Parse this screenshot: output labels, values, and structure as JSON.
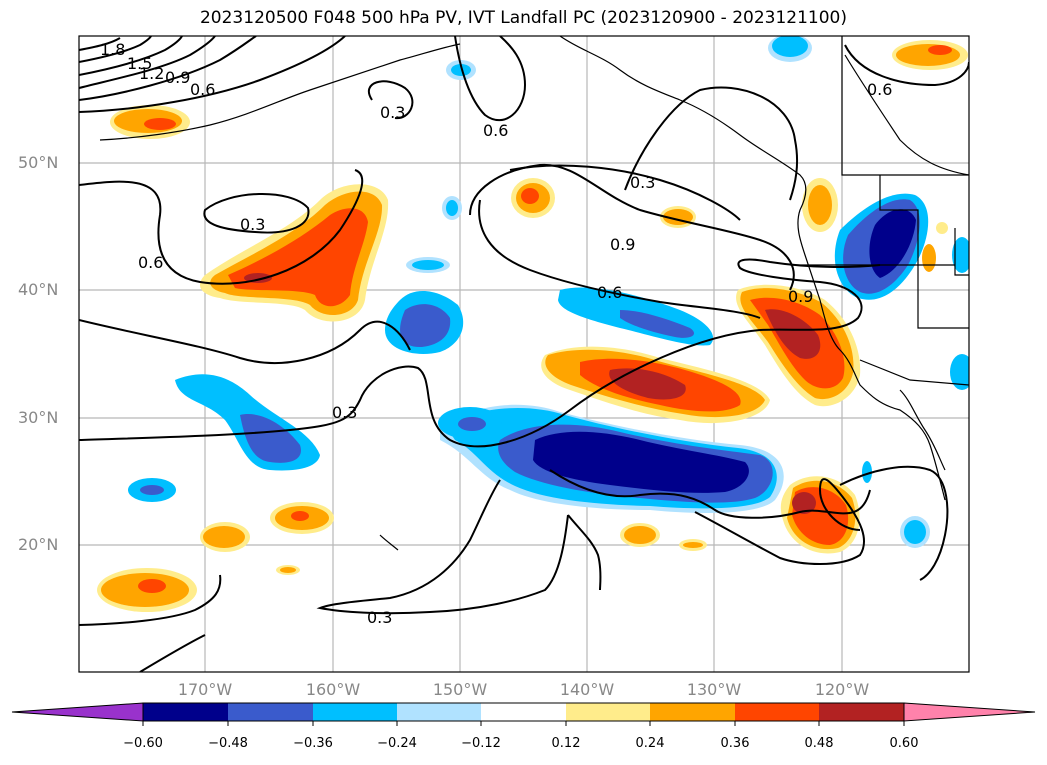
{
  "title": "2023120500 F048 500 hPa PV, IVT Landfall PC (2023120900 - 2023121100)",
  "map": {
    "lat_labels": [
      "50°N",
      "40°N",
      "30°N",
      "20°N"
    ],
    "lon_labels": [
      "170°W",
      "160°W",
      "150°W",
      "140°W",
      "130°W",
      "120°W"
    ],
    "contour_labels": [
      "1.8",
      "1.5",
      "1.2",
      "0.9",
      "0.6",
      "0.3",
      "0.6",
      "0.6",
      "0.3",
      "0.6",
      "0.3",
      "0.9",
      "0.6",
      "0.9",
      "0.3",
      "0.3"
    ]
  },
  "colorbar": {
    "ticks": [
      "−0.60",
      "−0.48",
      "−0.36",
      "−0.24",
      "−0.12",
      "0.12",
      "0.24",
      "0.36",
      "0.48",
      "0.60"
    ],
    "colors": [
      "#9932cc",
      "#00008b",
      "#3a5bcc",
      "#00bfff",
      "#b0e2ff",
      "#ffffff",
      "#ffec8b",
      "#ffa500",
      "#ff4500",
      "#b22222",
      "#ff82ab"
    ]
  }
}
